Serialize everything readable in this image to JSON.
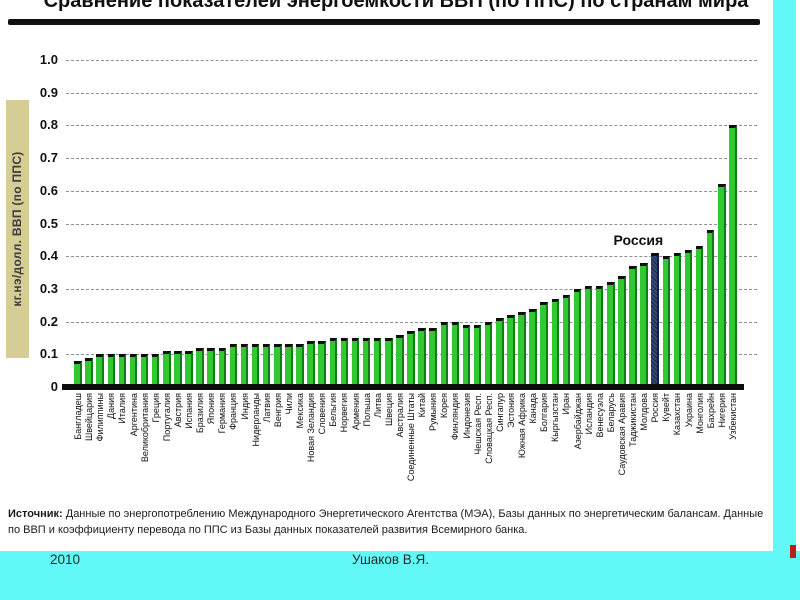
{
  "slide": {
    "source_label": "Источник:",
    "source_text": " Данные по энергопотреблению Международного Энергетического Агентства (МЭА), Базы данных по энергетическим балансам.  Данные по ВВП и коэффициенту перевода по ППС из Базы данных показателей развития Всемирного банка.",
    "footer": {
      "year": "2010",
      "author": "Ушаков В.Я."
    }
  },
  "chart_data": {
    "type": "bar",
    "title": "Сравнение показателей энергоемкости ВВП (по ППС) по странам мира",
    "ylabel": "кг.нэ/долл. ВВП (по ППС)",
    "xlabel": "",
    "ylim": [
      0,
      1.0
    ],
    "ytick_step": 0.1,
    "grid": "dashed-horizontal",
    "legend": "none",
    "highlight_country": "Россия",
    "annotation": {
      "label": "Россия",
      "target": "Россия"
    },
    "categories": [
      "Бангладеш",
      "Швейцария",
      "Филиппины",
      "Дания",
      "Италия",
      "Аргентина",
      "Великобритания",
      "Греция",
      "Португалия",
      "Австрия",
      "Испания",
      "Бразилия",
      "Япония",
      "Германия",
      "Франция",
      "Индия",
      "Нидерланды",
      "Латвия",
      "Венгрия",
      "Чили",
      "Мексика",
      "Новая Зеландия",
      "Словения",
      "Бельгия",
      "Норвегия",
      "Армения",
      "Польша",
      "Литва",
      "Швеция",
      "Австралия",
      "Соединенные Штаты",
      "Китай",
      "Румыния",
      "Корея",
      "Финляндия",
      "Индонезия",
      "Чешская Респ.",
      "Словацкая Респ.",
      "Сингапур",
      "Эстония",
      "Южная Африка",
      "Канада",
      "Болгария",
      "Кыргызстан",
      "Иран",
      "Азербайджан",
      "Исландия",
      "Венесуэла",
      "Беларусь",
      "Саудовская Аравия",
      "Таджикистан",
      "Молдова",
      "Россия",
      "Кувейт",
      "Казахстан",
      "Украина",
      "Монголия",
      "Бахрейн",
      "Нигерия",
      "Узбекистан"
    ],
    "values": [
      0.08,
      0.09,
      0.1,
      0.1,
      0.1,
      0.1,
      0.1,
      0.1,
      0.11,
      0.11,
      0.11,
      0.12,
      0.12,
      0.12,
      0.13,
      0.13,
      0.13,
      0.13,
      0.13,
      0.13,
      0.13,
      0.14,
      0.14,
      0.15,
      0.15,
      0.15,
      0.15,
      0.15,
      0.15,
      0.16,
      0.17,
      0.18,
      0.18,
      0.2,
      0.2,
      0.19,
      0.19,
      0.2,
      0.21,
      0.22,
      0.23,
      0.24,
      0.26,
      0.27,
      0.28,
      0.3,
      0.31,
      0.31,
      0.32,
      0.34,
      0.37,
      0.38,
      0.41,
      0.4,
      0.41,
      0.42,
      0.43,
      0.48,
      0.62,
      0.8
    ],
    "colors": {
      "bar": "#31c831",
      "bar_edge": "#147a18",
      "bar_cap": "#0d0d0d",
      "highlight": "#2a3c6e",
      "grid": "#8f8f8f",
      "ylabel_strip_bg": "#d6cd96",
      "border_cyan": "#62f8f8"
    }
  }
}
